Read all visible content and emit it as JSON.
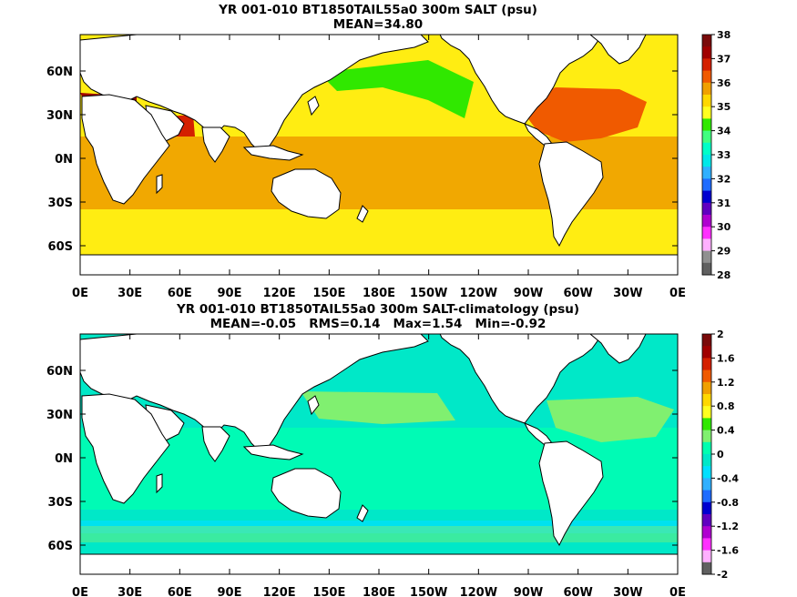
{
  "panels": [
    {
      "title_line1": "YR 001-010 BT1850TAIL55a0 300m SALT (psu)",
      "title_line2": "MEAN=34.80",
      "xticks": [
        "0E",
        "30E",
        "60E",
        "90E",
        "120E",
        "150E",
        "180E",
        "150W",
        "120W",
        "90W",
        "60W",
        "30W",
        "0E"
      ],
      "yticks": [
        "60N",
        "30N",
        "0N",
        "30S",
        "60S"
      ],
      "colorbar": {
        "labels": [
          "38",
          "37",
          "36",
          "35",
          "34",
          "33",
          "32",
          "31",
          "30",
          "29",
          "28"
        ],
        "colors": [
          "#7a0a0a",
          "#a00000",
          "#d42000",
          "#f05a00",
          "#f0a000",
          "#ffd800",
          "#ffff20",
          "#30e800",
          "#40ff80",
          "#00ffc8",
          "#00e8e8",
          "#30b0ff",
          "#1f6cff",
          "#0000d0",
          "#6000c0",
          "#b000d0",
          "#ff30ff",
          "#ffb0ff",
          "#909090",
          "#606060"
        ]
      }
    },
    {
      "title_line1": "YR 001-010 BT1850TAIL55a0 300m SALT-climatology (psu)",
      "title_line2": "MEAN=-0.05   RMS=0.14   Max=1.54   Min=-0.92",
      "xticks": [
        "0E",
        "30E",
        "60E",
        "90E",
        "120E",
        "150E",
        "180E",
        "150W",
        "120W",
        "90W",
        "60W",
        "30W",
        "0E"
      ],
      "yticks": [
        "60N",
        "30N",
        "0N",
        "30S",
        "60S"
      ],
      "colorbar": {
        "labels": [
          "2",
          "1.6",
          "1.2",
          "0.8",
          "0.4",
          "0",
          "-0.4",
          "-0.8",
          "-1.2",
          "-1.6",
          "-2"
        ],
        "colors": [
          "#7a0a0a",
          "#a00000",
          "#d42000",
          "#f05a00",
          "#f0a000",
          "#ffd800",
          "#ffff20",
          "#30e800",
          "#80f070",
          "#00ffb0",
          "#00e8c8",
          "#00e0ff",
          "#30b0ff",
          "#1f6cff",
          "#0000d0",
          "#6000c0",
          "#b000d0",
          "#ff30ff",
          "#ffb0ff",
          "#606060"
        ]
      }
    }
  ],
  "chart_data": [
    {
      "type": "heatmap",
      "title": "YR 001-010 BT1850TAIL55a0 300m SALT (psu)",
      "subtitle": "MEAN=34.80",
      "x_range": [
        "0E",
        "0E"
      ],
      "y_range": [
        "80S",
        "85N"
      ],
      "colorbar_range": [
        28,
        38
      ],
      "mean": 34.8
    },
    {
      "type": "heatmap",
      "title": "YR 001-010 BT1850TAIL55a0 300m SALT-climatology (psu)",
      "subtitle": "MEAN=-0.05   RMS=0.14   Max=1.54   Min=-0.92",
      "x_range": [
        "0E",
        "0E"
      ],
      "y_range": [
        "80S",
        "85N"
      ],
      "colorbar_range": [
        -2,
        2
      ],
      "mean": -0.05,
      "rms": 0.14,
      "max": 1.54,
      "min": -0.92
    }
  ]
}
